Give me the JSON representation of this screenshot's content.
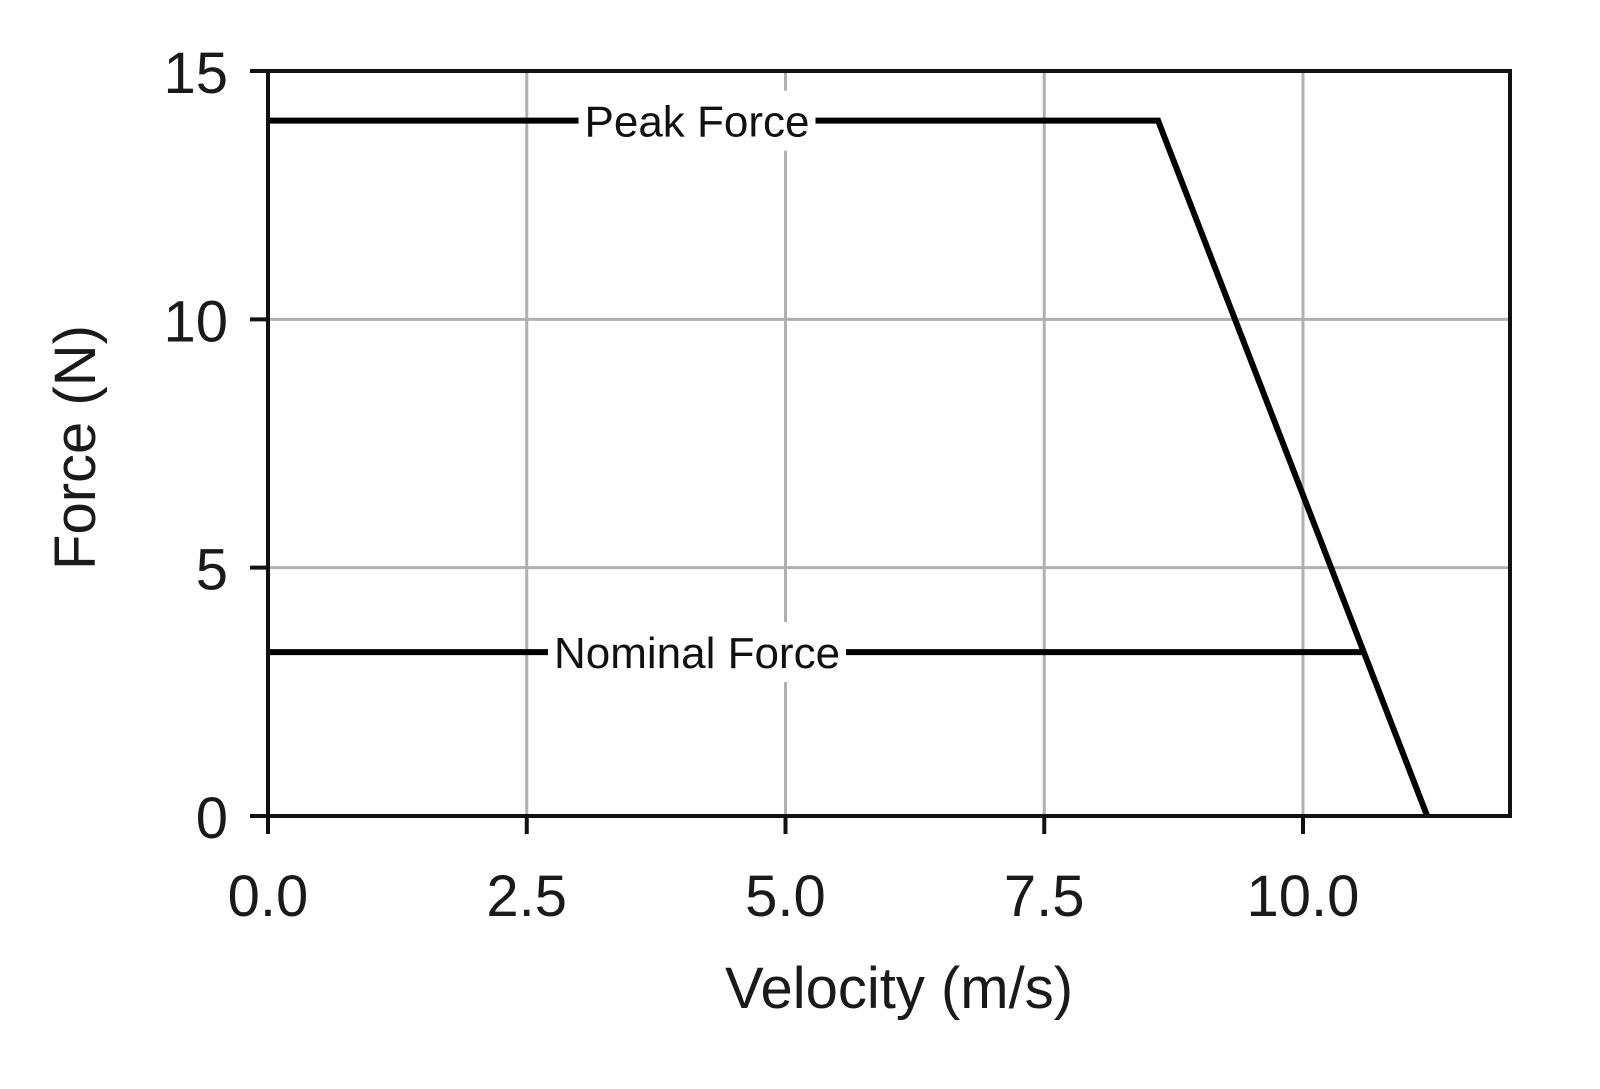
{
  "chart_data": {
    "type": "line",
    "title": "",
    "xlabel": "Velocity (m/s)",
    "ylabel": "Force (N)",
    "xlim": [
      0,
      12.0
    ],
    "ylim": [
      0,
      15
    ],
    "xticks": [
      0.0,
      2.5,
      5.0,
      7.5,
      10.0
    ],
    "xtick_labels": [
      "0.0",
      "2.5",
      "5.0",
      "7.5",
      "10.0"
    ],
    "yticks": [
      0,
      5,
      10,
      15
    ],
    "ytick_labels": [
      "0",
      "5",
      "10",
      "15"
    ],
    "grid": true,
    "legend": "none",
    "series": [
      {
        "name": "Peak Force",
        "label": "Peak Force",
        "color": "#000000",
        "x": [
          0.0,
          8.6,
          11.2
        ],
        "y": [
          14.0,
          14.0,
          0.0
        ],
        "label_at_x": 4.0
      },
      {
        "name": "Nominal Force",
        "label": "Nominal Force",
        "color": "#000000",
        "x": [
          0.0,
          10.6
        ],
        "y": [
          3.3,
          3.3
        ],
        "label_at_x": 4.0
      }
    ],
    "grid_color": "#b0b0b0"
  }
}
